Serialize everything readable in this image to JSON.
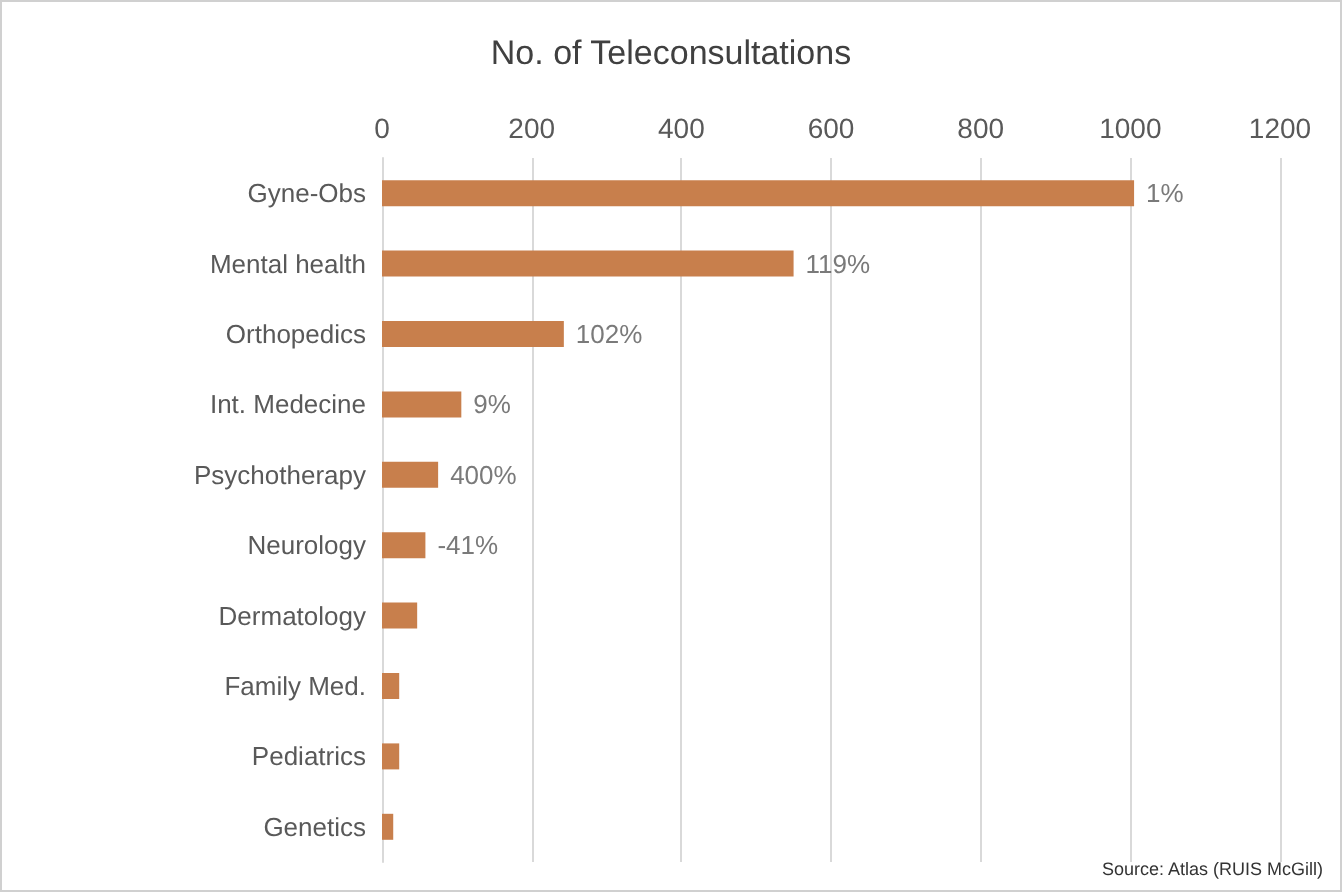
{
  "chart_data": {
    "type": "bar",
    "orientation": "horizontal",
    "title": "No. of Teleconsultations",
    "categories": [
      "Gyne-Obs",
      "Mental health",
      "Orthopedics",
      "Int. Medecine",
      "Psychotherapy",
      "Neurology",
      "Dermatology",
      "Family Med.",
      "Pediatrics",
      "Genetics"
    ],
    "values": [
      1005,
      550,
      243,
      106,
      75,
      58,
      47,
      23,
      23,
      15
    ],
    "color": "#c87f4c",
    "xlim": [
      0,
      1200
    ],
    "xticks": [
      0,
      200,
      400,
      600,
      800,
      1000,
      1200
    ],
    "grid": "x",
    "annotations": [
      {
        "text": "1%",
        "x": 1005,
        "y": "Gyne-Obs"
      },
      {
        "text": "119%",
        "x": 550,
        "y": "Mental health"
      },
      {
        "text": "102%",
        "x": 243,
        "y": "Orthopedics"
      },
      {
        "text": "9%",
        "x": 106,
        "y": "Int. Medecine"
      },
      {
        "text": "400%",
        "x": 75,
        "y": "Psychotherapy"
      },
      {
        "text": "-41%",
        "x": 58,
        "y": "Neurology"
      },
      "Source: Atlas (RUIS McGill)"
    ]
  }
}
